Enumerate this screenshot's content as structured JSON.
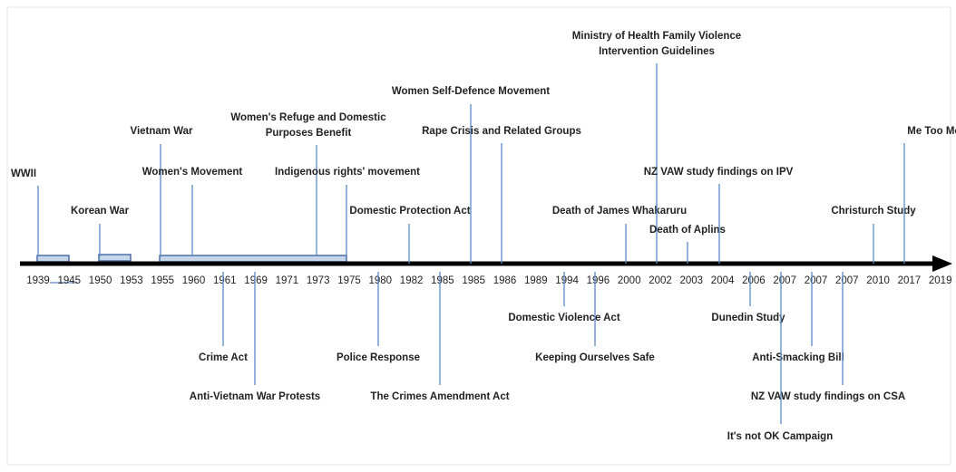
{
  "years": [
    "1939",
    "1945",
    "1950",
    "1953",
    "1955",
    "1960",
    "1961",
    "1969",
    "1971",
    "1973",
    "1975",
    "1980",
    "1982",
    "1985",
    "1985",
    "1986",
    "1989",
    "1994",
    "1996",
    "2000",
    "2002",
    "2003",
    "2004",
    "2006",
    "2007",
    "2007",
    "2007",
    "2010",
    "2017",
    "2019"
  ],
  "events_above": [
    {
      "text": [
        "WWII"
      ]
    },
    {
      "text": [
        "Korean War"
      ]
    },
    {
      "text": [
        "Vietnam War"
      ]
    },
    {
      "text": [
        "Women's Movement"
      ]
    },
    {
      "text": [
        "Women's Refuge and Domestic",
        "Purposes Benefit"
      ]
    },
    {
      "text": [
        "Indigenous rights' movement"
      ]
    },
    {
      "text": [
        "Domestic Protection Act"
      ]
    },
    {
      "text": [
        "Women Self-Defence Movement"
      ]
    },
    {
      "text": [
        "Rape Crisis and Related Groups"
      ]
    },
    {
      "text": [
        "Death of James Whakaruru"
      ]
    },
    {
      "text": [
        "Ministry of Health Family Violence",
        "Intervention Guidelines"
      ]
    },
    {
      "text": [
        "Death of Aplins"
      ]
    },
    {
      "text": [
        "NZ VAW study findings on IPV"
      ]
    },
    {
      "text": [
        "Christurch Study"
      ]
    },
    {
      "text": [
        "Me Too Movement"
      ]
    }
  ],
  "events_below": [
    {
      "text": [
        "Crime Act"
      ]
    },
    {
      "text": [
        "Anti-Vietnam War Protests"
      ]
    },
    {
      "text": [
        "Police Response"
      ]
    },
    {
      "text": [
        "The Crimes Amendment Act"
      ]
    },
    {
      "text": [
        "Domestic Violence Act"
      ]
    },
    {
      "text": [
        "Keeping Ourselves Safe"
      ]
    },
    {
      "text": [
        "Dunedin Study"
      ]
    },
    {
      "text": [
        "Anti-Smacking Bill"
      ]
    },
    {
      "text": [
        "NZ VAW study findings on CSA"
      ]
    },
    {
      "text": [
        "It's not OK Campaign"
      ]
    }
  ]
}
